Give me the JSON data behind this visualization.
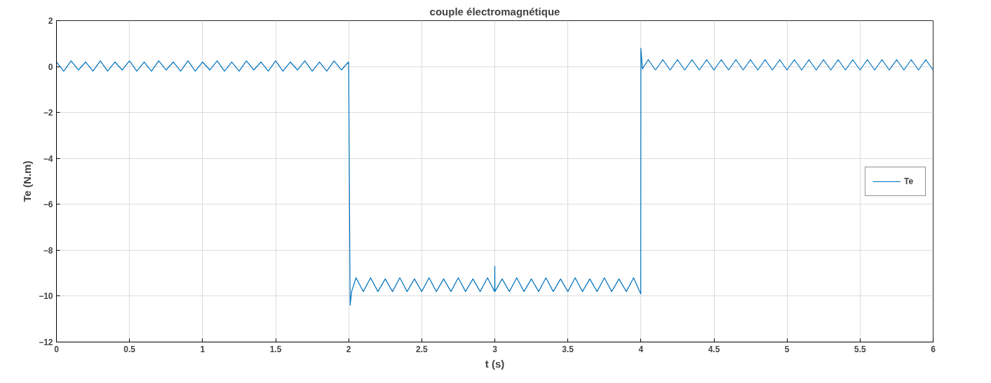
{
  "chart_data": {
    "type": "line",
    "title": "couple électromagnétique",
    "xlabel": "t (s)",
    "ylabel": "Te (N.m)",
    "xlim": [
      0,
      6
    ],
    "ylim": [
      -12,
      2
    ],
    "xticks": [
      0,
      0.5,
      1,
      1.5,
      2,
      2.5,
      3,
      3.5,
      4,
      4.5,
      5,
      5.5,
      6
    ],
    "yticks": [
      -12,
      -10,
      -8,
      -6,
      -4,
      -2,
      0,
      2
    ],
    "grid": true,
    "legend": "right",
    "line_style": "solid",
    "series": [
      {
        "name": "Te",
        "color": "#0072bd",
        "x": [
          0,
          0.05,
          0.1,
          0.15,
          0.2,
          0.25,
          0.3,
          0.35,
          0.4,
          0.45,
          0.5,
          0.55,
          0.6,
          0.65,
          0.7,
          0.75,
          0.8,
          0.85,
          0.9,
          0.95,
          1,
          1.05,
          1.1,
          1.15,
          1.2,
          1.25,
          1.3,
          1.35,
          1.4,
          1.45,
          1.5,
          1.55,
          1.6,
          1.65,
          1.7,
          1.75,
          1.8,
          1.85,
          1.9,
          1.95,
          1.999,
          2.0,
          2.01,
          2.02,
          2.05,
          2.1,
          2.15,
          2.2,
          2.25,
          2.3,
          2.35,
          2.4,
          2.45,
          2.5,
          2.55,
          2.6,
          2.65,
          2.7,
          2.75,
          2.8,
          2.85,
          2.9,
          2.95,
          2.999,
          3.0,
          3.001,
          3.05,
          3.1,
          3.15,
          3.2,
          3.25,
          3.3,
          3.35,
          3.4,
          3.45,
          3.5,
          3.55,
          3.6,
          3.65,
          3.7,
          3.75,
          3.8,
          3.85,
          3.9,
          3.95,
          3.999,
          4.0,
          4.01,
          4.05,
          4.1,
          4.15,
          4.2,
          4.25,
          4.3,
          4.35,
          4.4,
          4.45,
          4.5,
          4.55,
          4.6,
          4.65,
          4.7,
          4.75,
          4.8,
          4.85,
          4.9,
          4.95,
          5,
          5.05,
          5.1,
          5.15,
          5.2,
          5.25,
          5.3,
          5.35,
          5.4,
          5.45,
          5.5,
          5.55,
          5.6,
          5.65,
          5.7,
          5.75,
          5.8,
          5.85,
          5.9,
          5.95,
          6
        ],
        "values": [
          0.2,
          -0.2,
          0.25,
          -0.15,
          0.2,
          -0.2,
          0.25,
          -0.2,
          0.2,
          -0.15,
          0.25,
          -0.2,
          0.2,
          -0.2,
          0.25,
          -0.15,
          0.2,
          -0.2,
          0.25,
          -0.2,
          0.2,
          -0.15,
          0.25,
          -0.2,
          0.2,
          -0.2,
          0.25,
          -0.15,
          0.2,
          -0.2,
          0.25,
          -0.2,
          0.2,
          -0.15,
          0.25,
          -0.2,
          0.2,
          -0.2,
          0.25,
          -0.15,
          0.2,
          -0.1,
          -10.4,
          -9.8,
          -9.2,
          -9.8,
          -9.2,
          -9.8,
          -9.25,
          -9.8,
          -9.2,
          -9.8,
          -9.25,
          -9.8,
          -9.2,
          -9.8,
          -9.25,
          -9.8,
          -9.2,
          -9.8,
          -9.25,
          -9.8,
          -9.2,
          -9.8,
          -8.7,
          -9.8,
          -9.25,
          -9.8,
          -9.2,
          -9.8,
          -9.25,
          -9.8,
          -9.2,
          -9.8,
          -9.25,
          -9.8,
          -9.2,
          -9.8,
          -9.25,
          -9.8,
          -9.2,
          -9.8,
          -9.25,
          -9.8,
          -9.2,
          -9.9,
          0.8,
          -0.1,
          0.3,
          -0.15,
          0.3,
          -0.15,
          0.3,
          -0.15,
          0.3,
          -0.15,
          0.3,
          -0.15,
          0.3,
          -0.15,
          0.3,
          -0.15,
          0.3,
          -0.15,
          0.3,
          -0.15,
          0.3,
          -0.15,
          0.3,
          -0.15,
          0.3,
          -0.15,
          0.3,
          -0.15,
          0.3,
          -0.15,
          0.3,
          -0.15,
          0.3,
          -0.15,
          0.3,
          -0.15,
          0.3,
          -0.15,
          0.3,
          -0.15,
          0.3,
          -0.15
        ]
      }
    ]
  }
}
